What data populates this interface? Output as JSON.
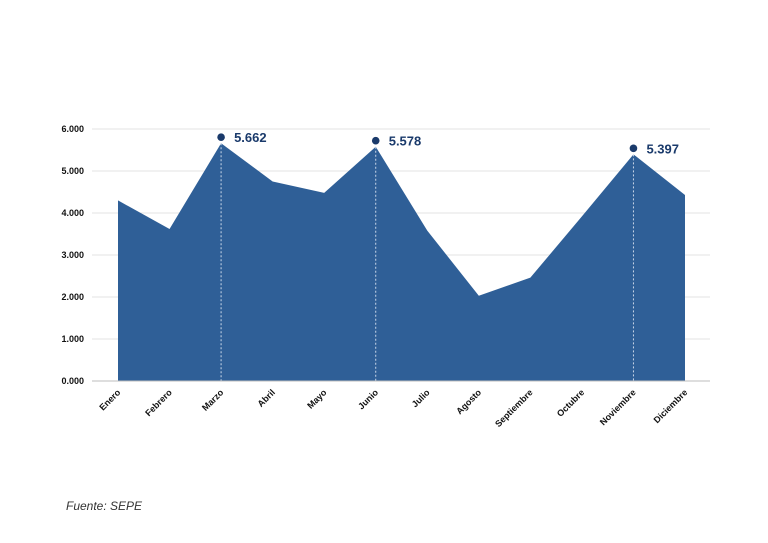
{
  "chart_data": {
    "type": "area",
    "categories": [
      "Enero",
      "Febrero",
      "Marzo",
      "Abril",
      "Mayo",
      "Junio",
      "Julio",
      "Agosto",
      "Septiembre",
      "Octubre",
      "Noviembre",
      "Diciembre"
    ],
    "series": [
      {
        "values": [
          4300,
          3620,
          5662,
          4750,
          4480,
          5578,
          3580,
          2030,
          2460,
          3920,
          5397,
          4430
        ]
      }
    ],
    "highlights": [
      {
        "category": "Marzo",
        "label": "5.662"
      },
      {
        "category": "Junio",
        "label": "5.578"
      },
      {
        "category": "Noviembre",
        "label": "5.397"
      }
    ],
    "yticks": [
      "0.000",
      "1.000",
      "2.000",
      "3.000",
      "4.000",
      "5.000",
      "6.000"
    ],
    "ylim": [
      0,
      6000
    ],
    "grid": true,
    "colors": {
      "area": "#2f5f97",
      "marker": "#1a3a6b",
      "grid": "#e3e3e3"
    }
  },
  "footer": {
    "source": "Fuente: SEPE"
  }
}
